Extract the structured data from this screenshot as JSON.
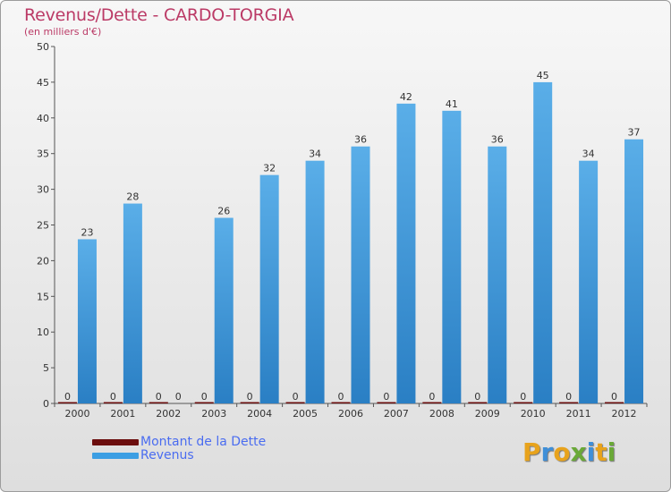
{
  "title": "Revenus/Dette - CARDO-TORGIA",
  "subtitle": "(en milliers d'€)",
  "legend": [
    {
      "label": "Montant de la Dette",
      "color": "#6b0d0d"
    },
    {
      "label": "Revenus",
      "color": "#3b9ee3"
    }
  ],
  "logo": {
    "text": "Proxiti",
    "letters": [
      "P",
      "r",
      "o",
      "x",
      "i",
      "t",
      "i"
    ],
    "colors": [
      "#e8a31c",
      "#3f8fd8",
      "#e8a31c",
      "#6aa937",
      "#3f8fd8",
      "#e8a31c",
      "#6aa937"
    ]
  },
  "chart_data": {
    "type": "bar",
    "title": "Revenus/Dette - CARDO-TORGIA",
    "ylabel": "(en milliers d'€)",
    "xlabel": "",
    "ylim": [
      0,
      50
    ],
    "yticks": [
      0,
      5,
      10,
      15,
      20,
      25,
      30,
      35,
      40,
      45,
      50
    ],
    "grid": false,
    "categories": [
      "2000",
      "2001",
      "2002",
      "2003",
      "2004",
      "2005",
      "2006",
      "2007",
      "2008",
      "2009",
      "2010",
      "2011",
      "2012"
    ],
    "series": [
      {
        "name": "Montant de la Dette",
        "color": "#6b0d0d",
        "values": [
          0,
          0,
          0,
          0,
          0,
          0,
          0,
          0,
          0,
          0,
          0,
          0,
          0
        ],
        "labels": [
          "0",
          "0",
          "0",
          "0",
          "0",
          "0",
          "0",
          "0",
          "0",
          "0",
          "0",
          "0",
          "0"
        ]
      },
      {
        "name": "Revenus",
        "color": "#3b9ee3",
        "values": [
          23,
          28,
          0,
          26,
          32,
          34,
          36,
          42,
          41,
          36,
          45,
          34,
          37
        ],
        "labels": [
          "23",
          "28",
          "0",
          "26",
          "32",
          "34",
          "36",
          "42",
          "41",
          "36",
          "45",
          "34",
          "37"
        ]
      }
    ]
  }
}
